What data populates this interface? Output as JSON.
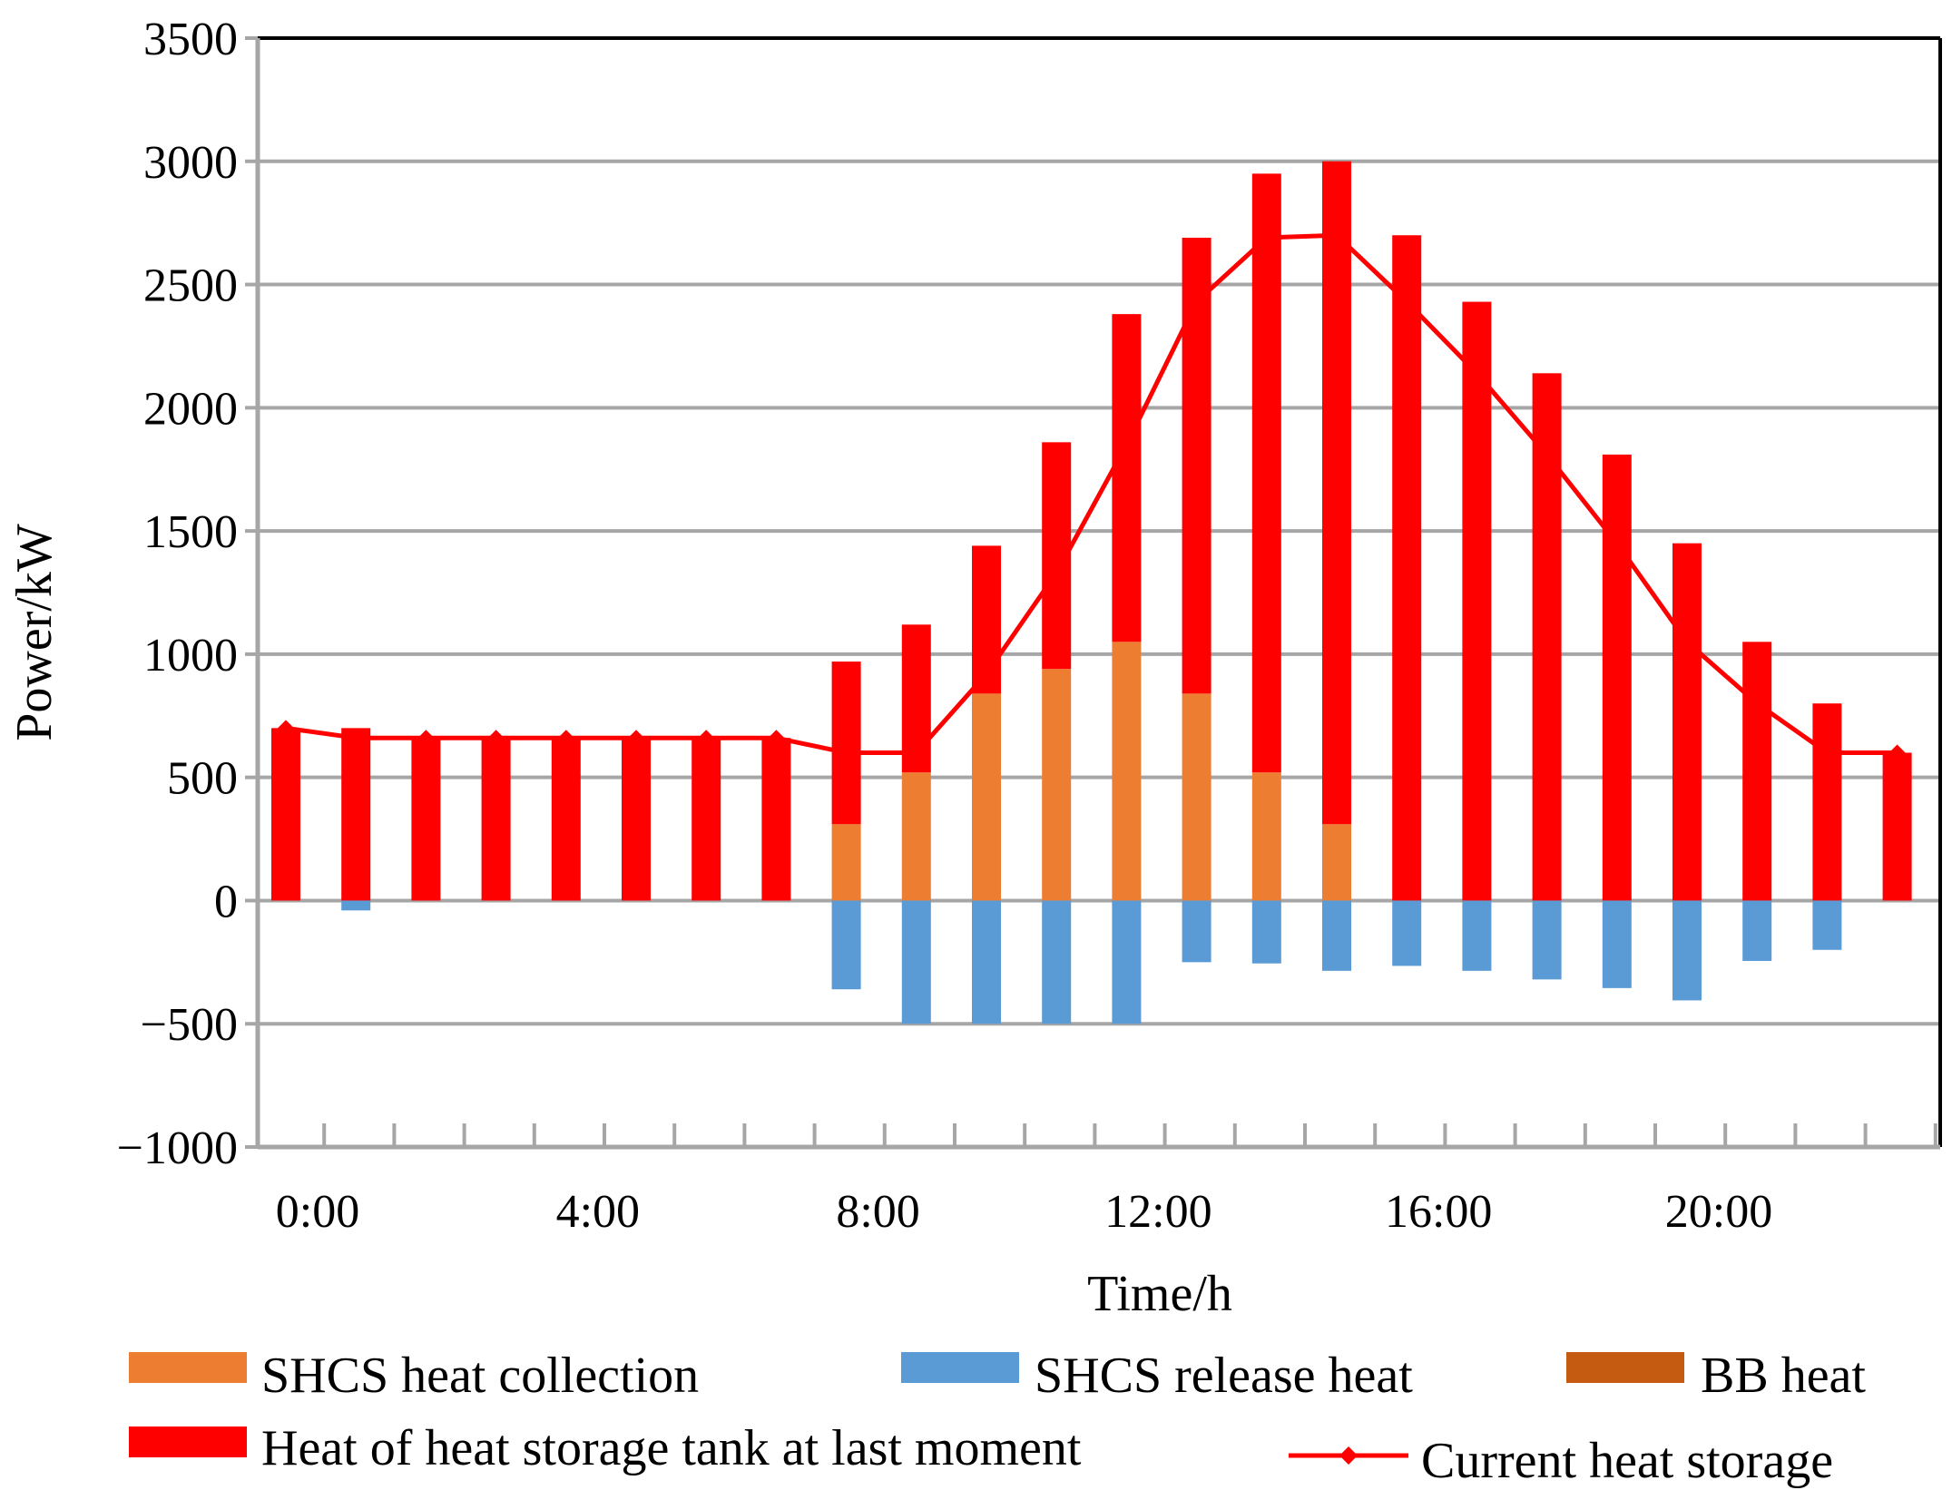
{
  "chart_data": {
    "type": "bar",
    "title": "",
    "xlabel": "Time/h",
    "ylabel": "Power/kW",
    "ylim": [
      -1000,
      3500
    ],
    "yticks": [
      -1000,
      -500,
      0,
      500,
      1000,
      1500,
      2000,
      2500,
      3000,
      3500
    ],
    "ytick_labels": [
      "−1000",
      "−500",
      "0",
      "500",
      "1000",
      "1500",
      "2000",
      "2500",
      "3000",
      "3500"
    ],
    "hours": [
      0,
      1,
      2,
      3,
      4,
      5,
      6,
      7,
      8,
      9,
      10,
      11,
      12,
      13,
      14,
      15,
      16,
      17,
      18,
      19,
      20,
      21,
      22,
      23
    ],
    "xtick_labels": [
      {
        "hour": 0,
        "label": "0:00"
      },
      {
        "hour": 4,
        "label": "4:00"
      },
      {
        "hour": 8,
        "label": "8:00"
      },
      {
        "hour": 12,
        "label": "12:00"
      },
      {
        "hour": 16,
        "label": "16:00"
      },
      {
        "hour": 20,
        "label": "20:00"
      }
    ],
    "grid": true,
    "legend_position": "bottom",
    "colors": {
      "shcs_collection": "#ED7D31",
      "shcs_release": "#5B9BD5",
      "bb_heat": "#C55A11",
      "tank_last": "#FF0000",
      "current_storage": "#FF0000",
      "grid": "#A6A6A6",
      "frame": "#000000"
    },
    "series": [
      {
        "key": "shcs_collection",
        "name": "SHCS heat collection",
        "kind": "bar",
        "values": [
          0,
          0,
          0,
          0,
          0,
          0,
          0,
          0,
          310,
          520,
          840,
          940,
          1050,
          840,
          520,
          310,
          0,
          0,
          0,
          0,
          0,
          0,
          0,
          0
        ]
      },
      {
        "key": "shcs_release",
        "name": "SHCS release heat",
        "kind": "bar",
        "values": [
          0,
          -40,
          0,
          0,
          0,
          0,
          0,
          0,
          -360,
          -500,
          -500,
          -500,
          -500,
          -250,
          -255,
          -285,
          -265,
          -285,
          -320,
          -355,
          -405,
          -245,
          -200,
          0
        ]
      },
      {
        "key": "bb_heat",
        "name": "BB heat",
        "kind": "bar",
        "values": [
          0,
          0,
          0,
          0,
          0,
          0,
          0,
          0,
          0,
          0,
          0,
          0,
          0,
          0,
          0,
          0,
          0,
          0,
          0,
          0,
          0,
          0,
          0,
          0
        ]
      },
      {
        "key": "tank_last",
        "name": "Heat of heat storage tank at last moment",
        "kind": "bar",
        "values": [
          700,
          700,
          660,
          660,
          660,
          660,
          660,
          660,
          660,
          600,
          600,
          920,
          1330,
          1850,
          2430,
          2690,
          2700,
          2430,
          2140,
          1810,
          1450,
          1050,
          800,
          600
        ]
      },
      {
        "key": "current_storage",
        "name": "Current heat storage",
        "kind": "line",
        "values": [
          700,
          660,
          660,
          660,
          660,
          660,
          660,
          660,
          600,
          600,
          920,
          1330,
          1850,
          2430,
          2690,
          2700,
          2430,
          2140,
          1810,
          1450,
          1050,
          800,
          600,
          600
        ]
      }
    ]
  }
}
